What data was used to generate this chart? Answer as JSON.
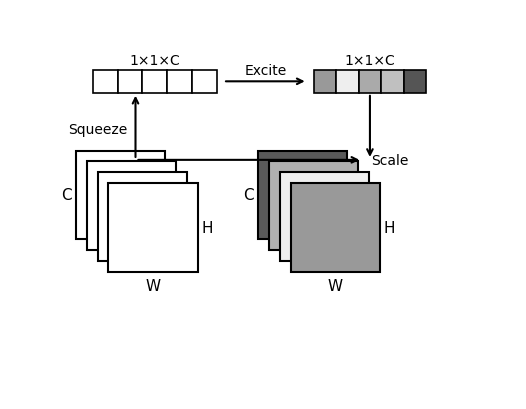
{
  "top_label_left": "1×1×C",
  "top_label_right": "1×1×C",
  "squeeze_label": "Squeeze",
  "excite_label": "Excite",
  "scale_label": "Scale",
  "h_label": "H",
  "w_label": "W",
  "c_label": "C",
  "bar_colors_left": [
    "#ffffff",
    "#ffffff",
    "#ffffff",
    "#ffffff",
    "#ffffff"
  ],
  "bar_colors_right": [
    "#999999",
    "#eeeeee",
    "#aaaaaa",
    "#c0c0c0",
    "#555555"
  ],
  "stack_colors_left": [
    "#ffffff",
    "#ffffff",
    "#ffffff",
    "#ffffff"
  ],
  "stack_colors_right": [
    "#999999",
    "#f0f0f0",
    "#aaaaaa",
    "#666666"
  ],
  "fig_w": 5.26,
  "fig_h": 4.1,
  "dpi": 100
}
